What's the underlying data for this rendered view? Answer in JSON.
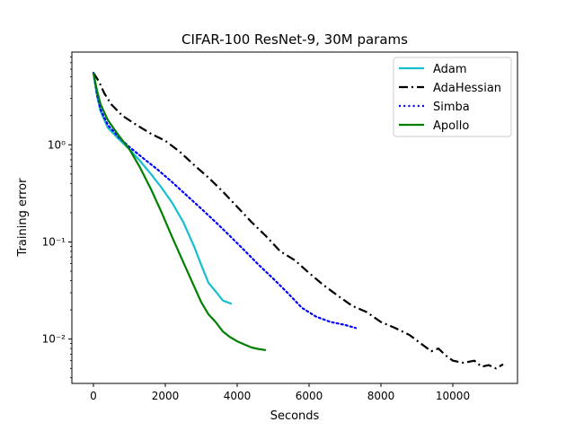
{
  "chart_data": {
    "type": "line",
    "title": "CIFAR-100 ResNet-9, 30M params",
    "xlabel": "Seconds",
    "ylabel": "Training error",
    "yscale": "log",
    "xlim": [
      -600,
      11800
    ],
    "ylim": [
      0.0035,
      9
    ],
    "xticks": [
      0,
      2000,
      4000,
      6000,
      8000,
      10000
    ],
    "xtick_labels": [
      "0",
      "2000",
      "4000",
      "6000",
      "8000",
      "10000"
    ],
    "yticks": [
      0.01,
      0.1,
      1
    ],
    "ytick_labels": [
      "10⁻²",
      "10⁻¹",
      "10⁰"
    ],
    "grid": false,
    "legend_position": "top-right",
    "series": [
      {
        "name": "Adam",
        "color": "#17becf",
        "style": "solid",
        "x": [
          0,
          100,
          200,
          400,
          700,
          1000,
          1300,
          1600,
          1900,
          2200,
          2500,
          2800,
          3000,
          3200,
          3400,
          3600,
          3850
        ],
        "y": [
          5.5,
          3.2,
          2.2,
          1.5,
          1.15,
          0.9,
          0.68,
          0.5,
          0.36,
          0.25,
          0.16,
          0.09,
          0.058,
          0.038,
          0.031,
          0.025,
          0.023
        ]
      },
      {
        "name": "AdaHessian",
        "color": "#000000",
        "style": "dashdot",
        "x": [
          0,
          150,
          300,
          500,
          800,
          1200,
          1600,
          2000,
          2400,
          2800,
          3200,
          3600,
          4000,
          4400,
          4800,
          5200,
          5600,
          6000,
          6400,
          6800,
          7200,
          7600,
          8000,
          8400,
          8800,
          9200,
          9400,
          9600,
          9800,
          10000,
          10300,
          10600,
          10800,
          11000,
          11200,
          11400
        ],
        "y": [
          5.5,
          4.5,
          3.4,
          2.6,
          2.0,
          1.6,
          1.3,
          1.1,
          0.85,
          0.62,
          0.46,
          0.33,
          0.23,
          0.16,
          0.115,
          0.08,
          0.065,
          0.048,
          0.036,
          0.028,
          0.022,
          0.019,
          0.015,
          0.013,
          0.011,
          0.0085,
          0.0075,
          0.008,
          0.0068,
          0.006,
          0.0057,
          0.006,
          0.0052,
          0.0054,
          0.005,
          0.0055
        ]
      },
      {
        "name": "Simba",
        "color": "#0000ff",
        "style": "dotted",
        "x": [
          0,
          100,
          200,
          400,
          700,
          1000,
          1400,
          1800,
          2200,
          2600,
          3000,
          3400,
          3800,
          4200,
          4600,
          5000,
          5400,
          5800,
          6200,
          6600,
          7000,
          7300
        ],
        "y": [
          5.5,
          3.3,
          2.3,
          1.6,
          1.2,
          0.95,
          0.72,
          0.55,
          0.41,
          0.3,
          0.22,
          0.16,
          0.115,
          0.082,
          0.058,
          0.042,
          0.03,
          0.021,
          0.017,
          0.015,
          0.014,
          0.013
        ]
      },
      {
        "name": "Apollo",
        "color": "#008000",
        "style": "solid",
        "x": [
          0,
          100,
          200,
          400,
          700,
          1000,
          1300,
          1600,
          1900,
          2200,
          2500,
          2800,
          3000,
          3200,
          3400,
          3600,
          3800,
          4000,
          4200,
          4400,
          4600,
          4800
        ],
        "y": [
          5.5,
          3.6,
          2.6,
          1.8,
          1.25,
          0.9,
          0.58,
          0.35,
          0.2,
          0.11,
          0.062,
          0.035,
          0.024,
          0.018,
          0.015,
          0.012,
          0.0105,
          0.0095,
          0.0088,
          0.0082,
          0.0079,
          0.0077
        ]
      }
    ]
  }
}
